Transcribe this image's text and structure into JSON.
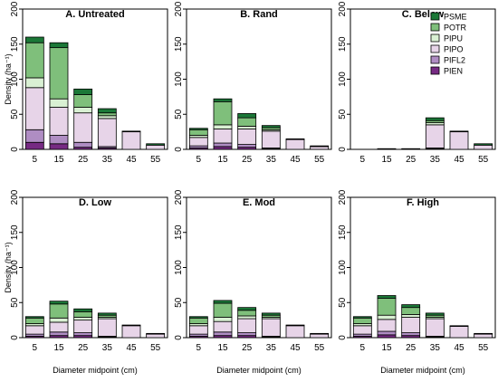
{
  "species": [
    "PSME",
    "POTR",
    "PIPU",
    "PIPO",
    "PIFL2",
    "PIEN"
  ],
  "colors": {
    "PSME": "#1b7837",
    "POTR": "#7fbf7b",
    "PIPU": "#d9f0d3",
    "PIPO": "#e7d4e8",
    "PIFL2": "#af8dc3",
    "PIEN": "#762a83"
  },
  "chart_data": [
    {
      "type": "bar",
      "stacked": true,
      "title": "A. Untreated",
      "categories": [
        "5",
        "15",
        "25",
        "35",
        "45",
        "55"
      ],
      "xlabel": "",
      "ylabel": "Density (ha⁻¹)",
      "ylim": [
        0,
        200
      ],
      "series": [
        {
          "name": "PIEN",
          "values": [
            10,
            8,
            3,
            2,
            0,
            0
          ]
        },
        {
          "name": "PIFL2",
          "values": [
            18,
            12,
            7,
            2,
            0,
            0
          ]
        },
        {
          "name": "PIPO",
          "values": [
            60,
            40,
            42,
            40,
            25,
            6
          ]
        },
        {
          "name": "PIPU",
          "values": [
            14,
            12,
            8,
            4,
            0,
            0
          ]
        },
        {
          "name": "POTR",
          "values": [
            50,
            73,
            18,
            4,
            0,
            0
          ]
        },
        {
          "name": "PSME",
          "values": [
            8,
            7,
            8,
            6,
            1,
            2
          ]
        }
      ]
    },
    {
      "type": "bar",
      "stacked": true,
      "title": "B. Rand",
      "categories": [
        "5",
        "15",
        "25",
        "35",
        "45",
        "55"
      ],
      "xlabel": "",
      "ylabel": "",
      "ylim": [
        0,
        200
      ],
      "series": [
        {
          "name": "PIEN",
          "values": [
            2,
            4,
            3,
            1,
            0,
            0
          ]
        },
        {
          "name": "PIFL2",
          "values": [
            3,
            5,
            4,
            1,
            0,
            0
          ]
        },
        {
          "name": "PIPO",
          "values": [
            12,
            20,
            22,
            24,
            14,
            4
          ]
        },
        {
          "name": "PIPU",
          "values": [
            3,
            6,
            4,
            2,
            0,
            0
          ]
        },
        {
          "name": "POTR",
          "values": [
            8,
            33,
            12,
            3,
            0,
            0
          ]
        },
        {
          "name": "PSME",
          "values": [
            2,
            4,
            6,
            3,
            1,
            1
          ]
        }
      ]
    },
    {
      "type": "bar",
      "stacked": true,
      "title": "C. Below",
      "categories": [
        "5",
        "15",
        "25",
        "35",
        "45",
        "55"
      ],
      "xlabel": "",
      "ylabel": "",
      "ylim": [
        0,
        200
      ],
      "series": [
        {
          "name": "PIEN",
          "values": [
            0,
            0,
            0,
            1,
            0,
            0
          ]
        },
        {
          "name": "PIFL2",
          "values": [
            0,
            0,
            0,
            1,
            0,
            0
          ]
        },
        {
          "name": "PIPO",
          "values": [
            0,
            1,
            1,
            33,
            25,
            6
          ]
        },
        {
          "name": "PIPU",
          "values": [
            0,
            0,
            0,
            3,
            0,
            0
          ]
        },
        {
          "name": "POTR",
          "values": [
            0,
            0,
            0,
            3,
            0,
            0
          ]
        },
        {
          "name": "PSME",
          "values": [
            0,
            0,
            0,
            4,
            1,
            2
          ]
        }
      ]
    },
    {
      "type": "bar",
      "stacked": true,
      "title": "D. Low",
      "categories": [
        "5",
        "15",
        "25",
        "35",
        "45",
        "55"
      ],
      "xlabel": "Diameter midpoint (cm)",
      "ylabel": "Density (ha⁻¹)",
      "ylim": [
        0,
        200
      ],
      "series": [
        {
          "name": "PIEN",
          "values": [
            2,
            3,
            3,
            1,
            0,
            0
          ]
        },
        {
          "name": "PIFL2",
          "values": [
            3,
            5,
            4,
            1,
            0,
            0
          ]
        },
        {
          "name": "PIPO",
          "values": [
            12,
            14,
            18,
            25,
            17,
            5
          ]
        },
        {
          "name": "PIPU",
          "values": [
            3,
            6,
            4,
            2,
            0,
            0
          ]
        },
        {
          "name": "POTR",
          "values": [
            8,
            20,
            8,
            3,
            0,
            0
          ]
        },
        {
          "name": "PSME",
          "values": [
            2,
            4,
            4,
            3,
            1,
            1
          ]
        }
      ]
    },
    {
      "type": "bar",
      "stacked": true,
      "title": "E. Mod",
      "categories": [
        "5",
        "15",
        "25",
        "35",
        "45",
        "55"
      ],
      "xlabel": "Diameter midpoint (cm)",
      "ylabel": "",
      "ylim": [
        0,
        200
      ],
      "series": [
        {
          "name": "PIEN",
          "values": [
            2,
            3,
            3,
            1,
            0,
            0
          ]
        },
        {
          "name": "PIFL2",
          "values": [
            3,
            5,
            4,
            1,
            0,
            0
          ]
        },
        {
          "name": "PIPO",
          "values": [
            12,
            15,
            20,
            25,
            17,
            5
          ]
        },
        {
          "name": "PIPU",
          "values": [
            3,
            6,
            4,
            2,
            0,
            0
          ]
        },
        {
          "name": "POTR",
          "values": [
            8,
            20,
            8,
            3,
            0,
            0
          ]
        },
        {
          "name": "PSME",
          "values": [
            2,
            4,
            4,
            3,
            1,
            1
          ]
        }
      ]
    },
    {
      "type": "bar",
      "stacked": true,
      "title": "F. High",
      "categories": [
        "5",
        "15",
        "25",
        "35",
        "45",
        "55"
      ],
      "xlabel": "Diameter midpoint (cm)",
      "ylabel": "",
      "ylim": [
        0,
        200
      ],
      "series": [
        {
          "name": "PIEN",
          "values": [
            2,
            4,
            3,
            1,
            0,
            0
          ]
        },
        {
          "name": "PIFL2",
          "values": [
            3,
            5,
            4,
            1,
            0,
            0
          ]
        },
        {
          "name": "PIPO",
          "values": [
            12,
            17,
            22,
            25,
            16,
            5
          ]
        },
        {
          "name": "PIPU",
          "values": [
            3,
            6,
            4,
            2,
            0,
            0
          ]
        },
        {
          "name": "POTR",
          "values": [
            8,
            24,
            10,
            3,
            0,
            0
          ]
        },
        {
          "name": "PSME",
          "values": [
            2,
            4,
            4,
            3,
            1,
            1
          ]
        }
      ]
    }
  ]
}
